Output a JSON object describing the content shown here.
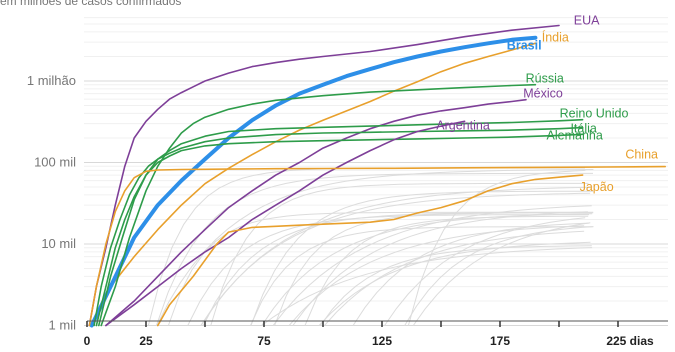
{
  "subtitle": "em milhões de casos confirmados",
  "chart_data": {
    "type": "line",
    "title": "",
    "xlabel": "",
    "ylabel": "",
    "y_scale": "log",
    "xlim": [
      0,
      245
    ],
    "ylim": [
      700,
      6000000
    ],
    "x_unit_label": "dias",
    "x_ticks": [
      0,
      25,
      75,
      125,
      175,
      225
    ],
    "x_tick_labels": [
      "0",
      "25",
      "75",
      "125",
      "175",
      "225 dias"
    ],
    "x_minor_ticks": [
      50,
      100,
      150,
      200
    ],
    "y_ticks": [
      1000,
      10000,
      100000,
      1000000
    ],
    "y_tick_labels": [
      "1 mil",
      "10 mil",
      "100 mil",
      "1 milhão"
    ],
    "grid": true,
    "colors": {
      "purple": "#7e3f98",
      "orange": "#e8a02c",
      "green": "#2e9c4a",
      "blue": "#2d8fe8",
      "gray": "#dcdcdc"
    },
    "series": [
      {
        "name": "EUA",
        "color": "purple",
        "label_x": 205,
        "x": [
          1,
          4,
          8,
          12,
          16,
          20,
          25,
          30,
          35,
          40,
          45,
          50,
          60,
          70,
          80,
          90,
          100,
          120,
          140,
          160,
          180,
          200
        ],
        "y": [
          1000,
          3000,
          9000,
          30000,
          90000,
          200000,
          320000,
          450000,
          600000,
          720000,
          850000,
          1000000,
          1250000,
          1500000,
          1680000,
          1850000,
          2000000,
          2300000,
          2800000,
          3500000,
          4200000,
          4800000
        ]
      },
      {
        "name": "Índia",
        "color": "orange",
        "label_x": 191,
        "x": [
          2,
          10,
          20,
          30,
          40,
          50,
          60,
          70,
          80,
          90,
          100,
          110,
          120,
          130,
          140,
          150,
          160,
          170,
          180,
          190
        ],
        "y": [
          1000,
          3000,
          7000,
          15000,
          30000,
          55000,
          85000,
          125000,
          180000,
          250000,
          330000,
          430000,
          560000,
          750000,
          980000,
          1300000,
          1650000,
          2000000,
          2400000,
          2900000
        ]
      },
      {
        "name": "Brasil",
        "color": "blue",
        "label_x": 180,
        "bold": true,
        "x": [
          2,
          10,
          20,
          30,
          40,
          50,
          60,
          70,
          80,
          90,
          100,
          110,
          120,
          130,
          140,
          150,
          160,
          170,
          180,
          190
        ],
        "y": [
          1000,
          3000,
          12000,
          30000,
          60000,
          110000,
          200000,
          330000,
          500000,
          700000,
          900000,
          1150000,
          1400000,
          1700000,
          2000000,
          2300000,
          2600000,
          2900000,
          3200000,
          3400000
        ]
      },
      {
        "name": "Rússia",
        "color": "green",
        "label_x": 185,
        "x": [
          6,
          12,
          18,
          25,
          30,
          35,
          40,
          45,
          50,
          60,
          70,
          80,
          90,
          100,
          120,
          140,
          160,
          180,
          190
        ],
        "y": [
          1000,
          3000,
          12000,
          45000,
          90000,
          150000,
          230000,
          300000,
          360000,
          450000,
          520000,
          580000,
          620000,
          660000,
          730000,
          780000,
          830000,
          880000,
          900000
        ]
      },
      {
        "name": "México",
        "color": "purple",
        "label_x": 184,
        "x": [
          8,
          20,
          30,
          40,
          50,
          60,
          70,
          80,
          90,
          100,
          110,
          120,
          130,
          140,
          150,
          160,
          170,
          180,
          186
        ],
        "y": [
          1000,
          2000,
          4000,
          8000,
          15000,
          28000,
          45000,
          70000,
          100000,
          150000,
          200000,
          260000,
          320000,
          380000,
          430000,
          470000,
          520000,
          560000,
          590000
        ]
      },
      {
        "name": "Reino Unido",
        "color": "green",
        "label_x": 199,
        "x": [
          4,
          8,
          12,
          16,
          20,
          25,
          30,
          35,
          40,
          50,
          60,
          80,
          100,
          120,
          140,
          160,
          180,
          200,
          210
        ],
        "y": [
          1000,
          3000,
          9000,
          20000,
          38000,
          70000,
          110000,
          140000,
          170000,
          210000,
          240000,
          260000,
          270000,
          280000,
          290000,
          300000,
          310000,
          325000,
          335000
        ]
      },
      {
        "name": "Itália",
        "color": "green",
        "label_x": 204,
        "x": [
          3,
          6,
          10,
          14,
          18,
          22,
          26,
          30,
          35,
          40,
          50,
          60,
          80,
          100,
          120,
          140,
          160,
          180,
          200,
          210
        ],
        "y": [
          1000,
          3000,
          9000,
          20000,
          40000,
          65000,
          90000,
          110000,
          130000,
          150000,
          180000,
          200000,
          220000,
          230000,
          235000,
          240000,
          245000,
          250000,
          260000,
          268000
        ]
      },
      {
        "name": "Alemanha",
        "color": "green",
        "label_x": 196,
        "x": [
          5,
          10,
          15,
          20,
          25,
          30,
          35,
          40,
          50,
          60,
          80,
          100,
          120,
          140,
          160,
          180,
          200,
          210
        ],
        "y": [
          1000,
          4000,
          12000,
          35000,
          70000,
          100000,
          120000,
          140000,
          160000,
          170000,
          180000,
          185000,
          190000,
          195000,
          200000,
          205000,
          215000,
          222000
        ]
      },
      {
        "name": "Argentina",
        "color": "purple",
        "label_x": 148,
        "x": [
          8,
          20,
          30,
          40,
          50,
          60,
          70,
          80,
          90,
          100,
          110,
          120,
          130,
          140,
          150,
          160
        ],
        "y": [
          1000,
          1800,
          3000,
          5000,
          8000,
          12000,
          20000,
          30000,
          45000,
          70000,
          100000,
          140000,
          190000,
          240000,
          280000,
          320000
        ]
      },
      {
        "name": "China",
        "color": "orange",
        "label_x": 246,
        "x": [
          1,
          4,
          8,
          12,
          16,
          20,
          25,
          30,
          40,
          60,
          80,
          100,
          130,
          160,
          190,
          220,
          245
        ],
        "y": [
          1000,
          3000,
          10000,
          25000,
          45000,
          65000,
          78000,
          81000,
          82000,
          83000,
          84000,
          84500,
          85000,
          86000,
          87000,
          88000,
          89000
        ]
      },
      {
        "name": "Japão",
        "color": "orange",
        "label_x": 210,
        "x": [
          30,
          35,
          45,
          55,
          60,
          70,
          80,
          90,
          100,
          110,
          120,
          130,
          140,
          150,
          160,
          170,
          180,
          190,
          200,
          210
        ],
        "y": [
          1000,
          1800,
          4000,
          10000,
          14000,
          16000,
          16500,
          17000,
          17500,
          18000,
          18500,
          20000,
          24000,
          28000,
          34000,
          45000,
          55000,
          62000,
          66000,
          70000
        ]
      }
    ]
  }
}
